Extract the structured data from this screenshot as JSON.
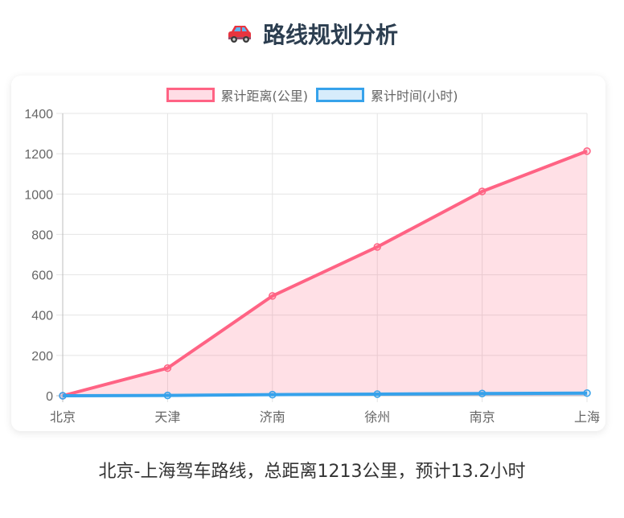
{
  "header": {
    "icon": "car-icon",
    "title": "路线规划分析"
  },
  "legend": [
    {
      "label": "累计距离(公里)",
      "border": "#ff6384",
      "fill": "#ffdde5"
    },
    {
      "label": "累计时间(小时)",
      "border": "#36a2eb",
      "fill": "#d7ecfb"
    }
  ],
  "caption": "北京-上海驾车路线，总距离1213公里，预计13.2小时",
  "chart_data": {
    "type": "line",
    "title": "",
    "xlabel": "",
    "ylabel": "",
    "categories": [
      "北京",
      "天津",
      "济南",
      "徐州",
      "南京",
      "上海"
    ],
    "series": [
      {
        "name": "累计距离(公里)",
        "values": [
          0,
          137,
          495,
          738,
          1013,
          1213
        ],
        "color": "#ff6384",
        "fill": "rgba(255,99,132,0.2)",
        "filled": true
      },
      {
        "name": "累计时间(小时)",
        "values": [
          0,
          1.5,
          5.4,
          8.1,
          11.0,
          13.2
        ],
        "color": "#36a2eb",
        "fill": "rgba(54,162,235,0.2)",
        "filled": true
      }
    ],
    "ylim": [
      0,
      1400
    ],
    "yticks": [
      0,
      200,
      400,
      600,
      800,
      1000,
      1200,
      1400
    ],
    "grid": true,
    "legend_position": "top"
  }
}
